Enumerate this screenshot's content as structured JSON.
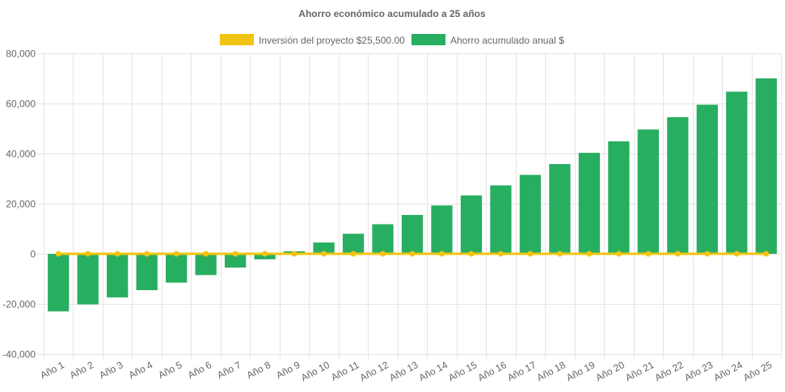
{
  "chart_data": {
    "type": "bar",
    "title": "Ahorro económico acumulado a 25 años",
    "xlabel": "",
    "ylabel": "",
    "ylim": [
      -40000,
      80000
    ],
    "yticks": [
      80000,
      60000,
      40000,
      20000,
      0,
      -20000,
      -40000
    ],
    "ytick_labels": [
      "80,000",
      "60,000",
      "40,000",
      "20,000",
      "0",
      "-20,000",
      "-40,000"
    ],
    "grid": true,
    "legend_position": "top",
    "categories": [
      "Año 1",
      "Año 2",
      "Año 3",
      "Año 4",
      "Año 5",
      "Año 6",
      "Año 7",
      "Año 8",
      "Año 9",
      "Año 10",
      "Año 11",
      "Año 12",
      "Año 13",
      "Año 14",
      "Año 15",
      "Año 16",
      "Año 17",
      "Año 18",
      "Año 19",
      "Año 20",
      "Año 21",
      "Año 22",
      "Año 23",
      "Año 24",
      "Año 25"
    ],
    "series": [
      {
        "name": "Inversión del proyecto $25,500.00",
        "type": "line",
        "color": "#f1c40f",
        "values": [
          0,
          0,
          0,
          0,
          0,
          0,
          0,
          0,
          0,
          0,
          0,
          0,
          0,
          0,
          0,
          0,
          0,
          0,
          0,
          0,
          0,
          0,
          0,
          0,
          0
        ]
      },
      {
        "name": "Ahorro acumulado anual $",
        "type": "bar",
        "color": "#27ae60",
        "values": [
          -23000,
          -20200,
          -17400,
          -14500,
          -11500,
          -8500,
          -5500,
          -2200,
          1000,
          4500,
          8000,
          11800,
          15500,
          19300,
          23300,
          27300,
          31500,
          35800,
          40300,
          44900,
          49600,
          54500,
          59500,
          64700,
          70000
        ]
      }
    ]
  }
}
